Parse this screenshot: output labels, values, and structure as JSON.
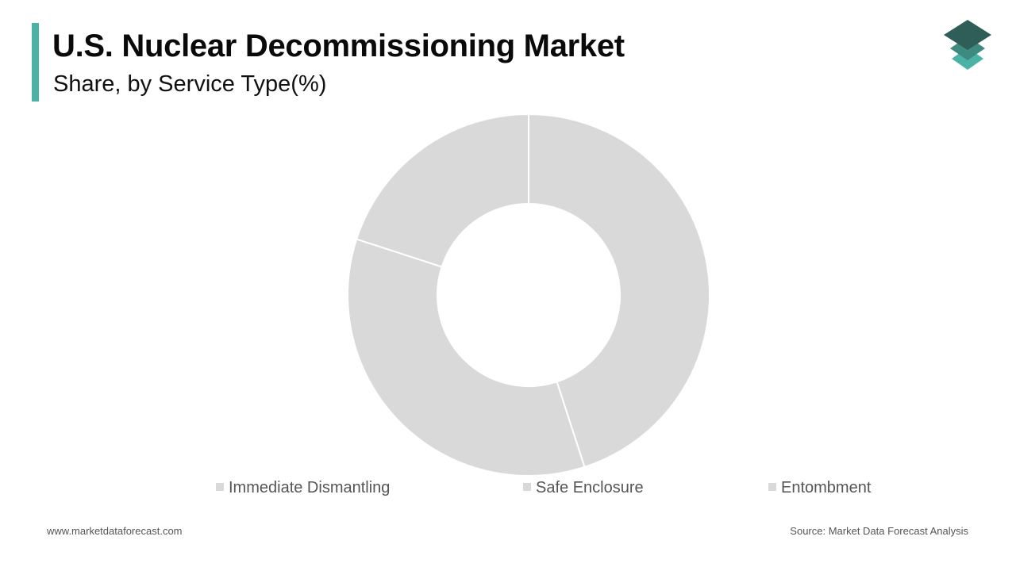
{
  "header": {
    "title": "U.S. Nuclear Decommissioning Market",
    "subtitle": "Share, by Service Type(%)"
  },
  "colors": {
    "accent": "#4bb3a6",
    "slice": "#d9d9d9",
    "slice_border": "#ffffff",
    "legend_text": "#555555",
    "logo_top": "#2f5d57",
    "logo_middle": "#3f8a80",
    "logo_bottom": "#4bb3a6"
  },
  "logo": {
    "icon": "stacked-layers-icon"
  },
  "chart_data": {
    "type": "pie",
    "donut": true,
    "title": "U.S. Nuclear Decommissioning Market",
    "subtitle": "Share, by Service Type(%)",
    "categories": [
      "Immediate Dismantling",
      "Safe Enclosure",
      "Entombment"
    ],
    "values": [
      45,
      35,
      20
    ],
    "data_labels_shown": false,
    "legend_position": "bottom",
    "start_angle_deg": 0,
    "direction": "clockwise"
  },
  "footer": {
    "website": "www.marketdataforecast.com",
    "source": "Source: Market Data Forecast Analysis"
  }
}
